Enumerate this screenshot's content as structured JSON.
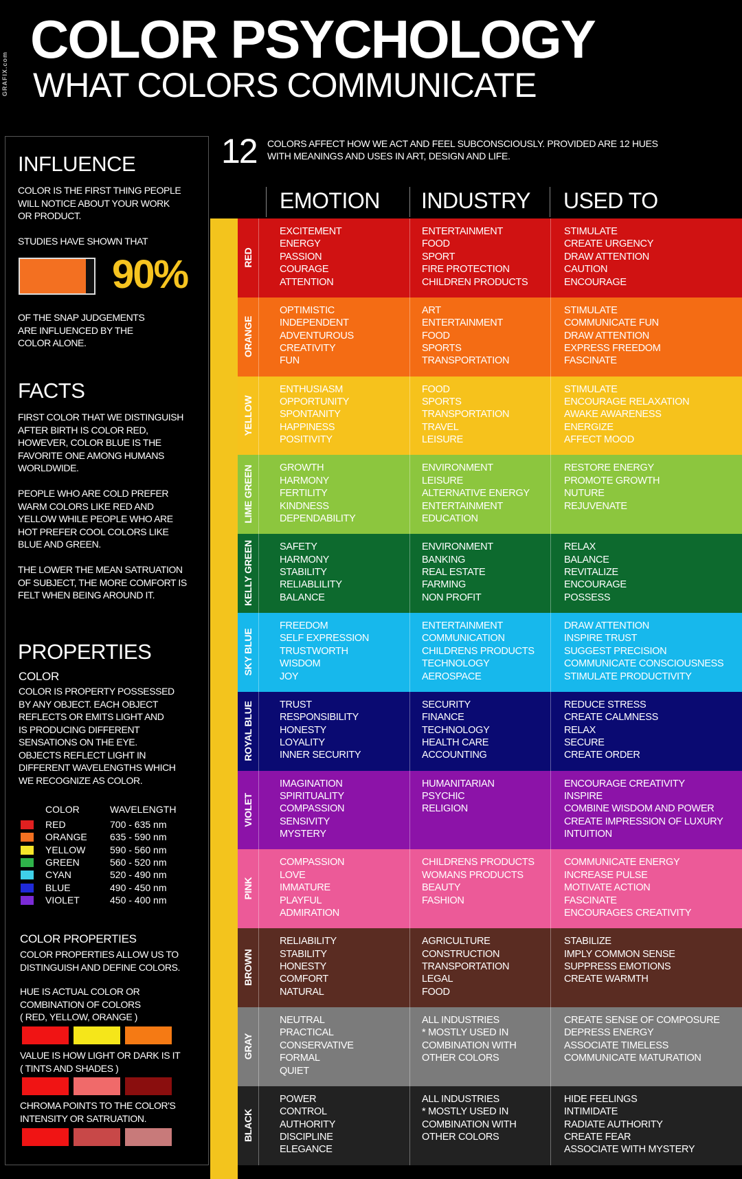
{
  "brand": "GRAFIX.com",
  "title": "COLOR PSYCHOLOGY",
  "subtitle": "WHAT COLORS COMMUNICATE",
  "intro": {
    "number": "12",
    "text_line1": "COLORS AFFECT HOW WE ACT AND FEEL SUBCONSCIOUSLY.  PROVIDED ARE 12 HUES",
    "text_line2": "WITH MEANINGS AND USES IN ART, DESIGN AND LIFE."
  },
  "headers": {
    "emotion": "EMOTION",
    "industry": "INDUSTRY",
    "used_to": "USED TO"
  },
  "sidebar": {
    "influence": {
      "heading": "INFLUENCE",
      "p1": [
        "COLOR IS THE FIRST THING PEOPLE",
        "WILL NOTICE ABOUT YOUR WORK",
        "OR PRODUCT."
      ],
      "p2": "STUDIES HAVE SHOWN THAT",
      "percent": "90%",
      "percent_value": 0.9,
      "p3": [
        "OF THE SNAP JUDGEMENTS",
        "ARE INFLUENCED BY THE",
        "COLOR  ALONE."
      ]
    },
    "facts": {
      "heading": "FACTS",
      "p1": [
        "FIRST COLOR THAT WE DISTINGUISH",
        "AFTER BIRTH IS COLOR RED,",
        "HOWEVER, COLOR BLUE IS THE",
        "FAVORITE ONE AMONG HUMANS",
        "WORLDWIDE."
      ],
      "p2": [
        "PEOPLE WHO ARE COLD PREFER",
        "WARM COLORS LIKE RED AND",
        "YELLOW WHILE PEOPLE WHO ARE",
        "HOT PREFER COOL COLORS LIKE",
        "BLUE AND GREEN."
      ],
      "p3": [
        "THE LOWER THE MEAN SATRUATION",
        "OF SUBJECT, THE MORE COMFORT IS",
        "FELT WHEN BEING AROUND IT."
      ]
    },
    "properties": {
      "heading": "PROPERTIES",
      "color_heading": "COLOR",
      "color_text": [
        "COLOR IS PROPERTY POSSESSED",
        "BY ANY OBJECT. EACH OBJECT",
        "REFLECTS OR EMITS LIGHT AND",
        "IS PRODUCING DIFFERENT",
        "SENSATIONS ON THE EYE.",
        "OBJECTS REFLECT LIGHT IN",
        "DIFFERENT WAVELENGTHS WHICH",
        "WE RECOGNIZE AS COLOR."
      ],
      "wavelength_table": {
        "col_color": "COLOR",
        "col_wavelength": "WAVELENGTH",
        "rows": [
          {
            "name": "RED",
            "range": "700 - 635 nm",
            "color": "#e02020"
          },
          {
            "name": "ORANGE",
            "range": "635 - 590 nm",
            "color": "#f37021"
          },
          {
            "name": "YELLOW",
            "range": "590 - 560 nm",
            "color": "#f5e52a"
          },
          {
            "name": "GREEN",
            "range": "560 - 520 nm",
            "color": "#2fb34a"
          },
          {
            "name": "CYAN",
            "range": "520 - 490 nm",
            "color": "#3fd0e8"
          },
          {
            "name": "BLUE",
            "range": "490 - 450 nm",
            "color": "#1f2ad8"
          },
          {
            "name": "VIOLET",
            "range": "450 - 400 nm",
            "color": "#7b2bd6"
          }
        ]
      },
      "color_properties_heading": "COLOR PROPERTIES",
      "color_properties_text": [
        "COLOR PROPERTIES ALLOW US TO",
        "DISTINGUISH AND DEFINE COLORS."
      ],
      "hue": {
        "lines": [
          "HUE IS ACTUAL COLOR OR",
          "COMBINATION OF COLORS",
          "( RED, YELLOW, ORANGE )"
        ],
        "swatches": [
          "#f01414",
          "#f5e61a",
          "#f57a14"
        ]
      },
      "value": {
        "lines": [
          "VALUE IS HOW LIGHT OR DARK IS IT",
          "( TINTS AND SHADES )"
        ],
        "swatches": [
          "#f01414",
          "#f06a6a",
          "#8a0e0e"
        ]
      },
      "chroma": {
        "lines": [
          "CHROMA POINTS TO THE COLOR'S",
          "INTENSITY OR SATRUATION."
        ],
        "swatches": [
          "#f01414",
          "#c84848",
          "#c87a7a"
        ]
      }
    }
  },
  "colors": [
    {
      "label": "RED",
      "bg": "#d01212",
      "text": "#ffffff",
      "emotion": [
        "EXCITEMENT",
        "ENERGY",
        "PASSION",
        "COURAGE",
        "ATTENTION"
      ],
      "industry": [
        "ENTERTAINMENT",
        "FOOD",
        "SPORT",
        "FIRE PROTECTION",
        "CHILDREN PRODUCTS"
      ],
      "used_to": [
        "STIMULATE",
        "CREATE URGENCY",
        "DRAW ATTENTION",
        "CAUTION",
        "ENCOURAGE"
      ]
    },
    {
      "label": "ORANGE",
      "bg": "#f46c14",
      "text": "#ffffff",
      "emotion": [
        "OPTIMISTIC",
        "INDEPENDENT",
        "ADVENTUROUS",
        "CREATIVITY",
        "FUN"
      ],
      "industry": [
        "ART",
        "ENTERTAINMENT",
        "FOOD",
        "SPORTS",
        "TRANSPORTATION"
      ],
      "used_to": [
        "STIMULATE",
        "COMMUNICATE FUN",
        "DRAW ATTENTION",
        "EXPRESS FREEDOM",
        "FASCINATE"
      ]
    },
    {
      "label": "YELLOW",
      "bg": "#f6c21c",
      "text": "#ffffff",
      "emotion": [
        "ENTHUSIASM",
        "OPPORTUNITY",
        "SPONTANITY",
        "HAPPINESS",
        "POSITIVITY"
      ],
      "industry": [
        "FOOD",
        "SPORTS",
        "TRANSPORTATION",
        "TRAVEL",
        "LEISURE"
      ],
      "used_to": [
        "STIMULATE",
        "ENCOURAGE RELAXATION",
        "AWAKE AWARENESS",
        "ENERGIZE",
        "AFFECT MOOD"
      ]
    },
    {
      "label": "LIME GREEN",
      "bg": "#8cc63e",
      "text": "#ffffff",
      "emotion": [
        "GROWTH",
        "HARMONY",
        "FERTILITY",
        "KINDNESS",
        "DEPENDABILITY"
      ],
      "industry": [
        "ENVIRONMENT",
        "LEISURE",
        "ALTERNATIVE ENERGY",
        "ENTERTAINMENT",
        "EDUCATION"
      ],
      "used_to": [
        "RESTORE ENERGY",
        "PROMOTE GROWTH",
        "NUTURE",
        "REJUVENATE"
      ]
    },
    {
      "label": "KELLY GREEN",
      "bg": "#0d6a2e",
      "text": "#ffffff",
      "emotion": [
        "SAFETY",
        "HARMONY",
        "STABILITY",
        "RELIABLILITY",
        "BALANCE"
      ],
      "industry": [
        "ENVIRONMENT",
        "BANKING",
        "REAL ESTATE",
        "FARMING",
        "NON PROFIT"
      ],
      "used_to": [
        "RELAX",
        "BALANCE",
        "REVITALIZE",
        "ENCOURAGE",
        "POSSESS"
      ]
    },
    {
      "label": "SKY BLUE",
      "bg": "#17b8ec",
      "text": "#ffffff",
      "emotion": [
        "FREEDOM",
        "SELF EXPRESSION",
        "TRUSTWORTH",
        "WISDOM",
        "JOY"
      ],
      "industry": [
        "ENTERTAINMENT",
        "COMMUNICATION",
        "CHILDRENS PRODUCTS",
        "TECHNOLOGY",
        "AEROSPACE"
      ],
      "used_to": [
        "DRAW ATTENTION",
        "INSPIRE TRUST",
        "SUGGEST PRECISION",
        "COMMUNICATE CONSCIOUSNESS",
        "STIMULATE PRODUCTIVITY"
      ]
    },
    {
      "label": "ROYAL BLUE",
      "bg": "#0a0a72",
      "text": "#ffffff",
      "emotion": [
        "TRUST",
        "RESPONSIBILITY",
        "HONESTY",
        "LOYALITY",
        "INNER SECURITY"
      ],
      "industry": [
        "SECURITY",
        "FINANCE",
        "TECHNOLOGY",
        "HEALTH CARE",
        "ACCOUNTING"
      ],
      "used_to": [
        "REDUCE STRESS",
        "CREATE CALMNESS",
        "RELAX",
        "SECURE",
        "CREATE ORDER"
      ]
    },
    {
      "label": "VIOLET",
      "bg": "#8c13a8",
      "text": "#ffffff",
      "emotion": [
        "IMAGINATION",
        "SPIRITUALITY",
        "COMPASSION",
        "SENSIVITY",
        "MYSTERY"
      ],
      "industry": [
        "HUMANITARIAN",
        "PSYCHIC",
        "RELIGION"
      ],
      "used_to": [
        "ENCOURAGE CREATIVITY",
        "INSPIRE",
        "COMBINE WISDOM AND POWER",
        "CREATE IMPRESSION OF LUXURY",
        "INTUITION"
      ]
    },
    {
      "label": "PINK",
      "bg": "#ec5a98",
      "text": "#ffffff",
      "emotion": [
        "COMPASSION",
        "LOVE",
        "IMMATURE",
        "PLAYFUL",
        "ADMIRATION"
      ],
      "industry": [
        "CHILDRENS PRODUCTS",
        "WOMANS PRODUCTS",
        "BEAUTY",
        "FASHION"
      ],
      "used_to": [
        "COMMUNICATE ENERGY",
        "INCREASE PULSE",
        "MOTIVATE ACTION",
        "FASCINATE",
        "ENCOURAGES CREATIVITY"
      ]
    },
    {
      "label": "BROWN",
      "bg": "#5a2c22",
      "text": "#ffffff",
      "emotion": [
        "RELIABILITY",
        "STABILITY",
        "HONESTY",
        "COMFORT",
        "NATURAL"
      ],
      "industry": [
        "AGRICULTURE",
        "CONSTRUCTION",
        "TRANSPORTATION",
        "LEGAL",
        "FOOD"
      ],
      "used_to": [
        "STABILIZE",
        "IMPLY COMMON SENSE",
        "SUPPRESS EMOTIONS",
        "CREATE WARMTH"
      ]
    },
    {
      "label": "GRAY",
      "bg": "#7b7b7b",
      "text": "#ffffff",
      "emotion": [
        "NEUTRAL",
        "PRACTICAL",
        "CONSERVATIVE",
        "FORMAL",
        "QUIET"
      ],
      "industry": [
        "ALL INDUSTRIES",
        "* MOSTLY USED IN",
        "COMBINATION WITH",
        "OTHER COLORS"
      ],
      "used_to": [
        "CREATE SENSE OF COMPOSURE",
        "DEPRESS ENERGY",
        "ASSOCIATE TIMELESS",
        "COMMUNICATE MATURATION"
      ]
    },
    {
      "label": "BLACK",
      "bg": "#222222",
      "text": "#ffffff",
      "emotion": [
        "POWER",
        "CONTROL",
        "AUTHORITY",
        "DISCIPLINE",
        "ELEGANCE"
      ],
      "industry": [
        "ALL INDUSTRIES",
        "* MOSTLY USED IN",
        "COMBINATION WITH",
        "OTHER COLORS"
      ],
      "used_to": [
        "HIDE FEELINGS",
        "INTIMIDATE",
        "RADIATE AUTHORITY",
        "CREATE FEAR",
        "ASSOCIATE WITH MYSTERY"
      ]
    }
  ]
}
